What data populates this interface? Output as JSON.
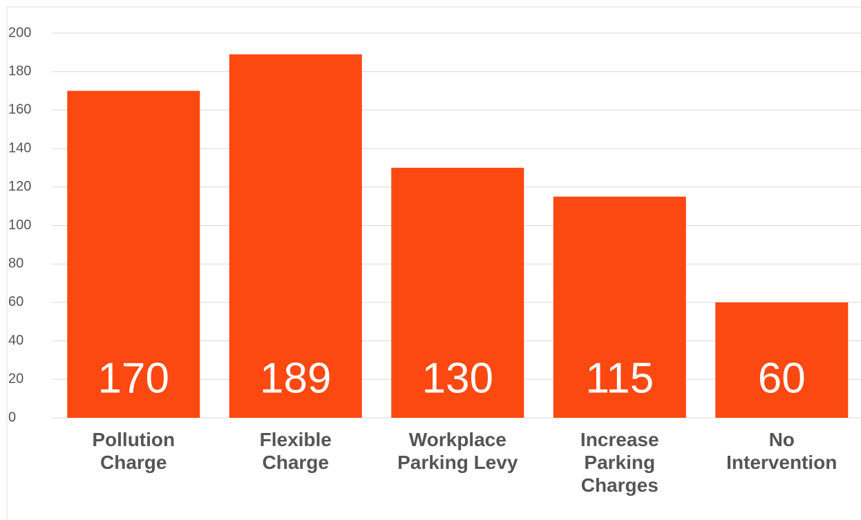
{
  "chart_data": {
    "type": "bar",
    "categories": [
      "Pollution Charge",
      "Flexible Charge",
      "Workplace Parking Levy",
      "Increase Parking Charges",
      "No Intervention"
    ],
    "values": [
      170,
      189,
      130,
      115,
      60
    ],
    "color": "#fc4811",
    "ylim": [
      0,
      200
    ],
    "yticks": [
      0,
      20,
      40,
      60,
      80,
      100,
      120,
      140,
      160,
      180,
      200
    ],
    "grid": true
  }
}
